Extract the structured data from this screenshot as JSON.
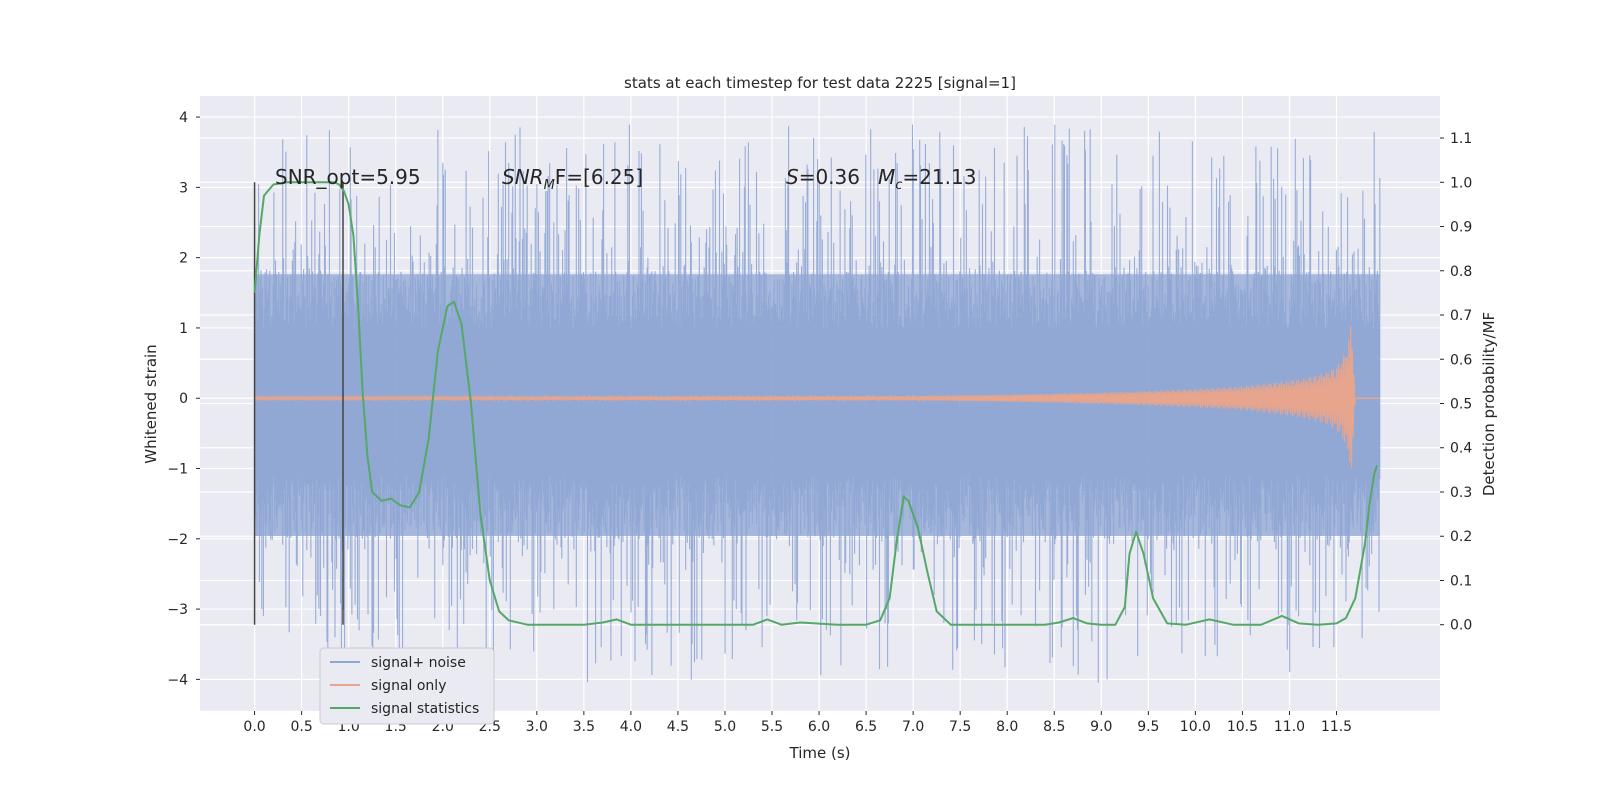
{
  "chart_data": {
    "type": "line",
    "title": "stats at each timestep for test data 2225 [signal=1]",
    "xlabel": "Time (s)",
    "ylabel": "Whitened strain",
    "y2label": "Detection probability/MF",
    "xlim": [
      -0.58,
      12.6
    ],
    "ylim": [
      -4.45,
      4.3
    ],
    "y2lim": [
      -0.195,
      1.195
    ],
    "x_ticks": [
      "0.0",
      "0.5",
      "1.0",
      "1.5",
      "2.0",
      "2.5",
      "3.0",
      "3.5",
      "4.0",
      "4.5",
      "5.0",
      "5.5",
      "6.0",
      "6.5",
      "7.0",
      "7.5",
      "8.0",
      "8.5",
      "9.0",
      "9.5",
      "10.0",
      "10.5",
      "11.0",
      "11.5"
    ],
    "y_ticks": [
      "4",
      "3",
      "2",
      "1",
      "0",
      "−1",
      "−2",
      "−3",
      "−4"
    ],
    "y2_ticks": [
      "1.1",
      "1.0",
      "0.9",
      "0.8",
      "0.7",
      "0.6",
      "0.5",
      "0.4",
      "0.3",
      "0.2",
      "0.1",
      "0.0"
    ],
    "grid": true,
    "legend_position": "lower-left",
    "annotations": {
      "snr_opt": "SNR_opt=5.95",
      "snr_mf_prefix": "SNR",
      "snr_mf_sub": "M",
      "snr_mf_suffix": "F=[6.25]",
      "s_prefix": "S",
      "s_value": "=0.36",
      "mc_prefix": "M",
      "mc_sub": "c",
      "mc_value": "=21.13"
    },
    "vlines": [
      0.0,
      0.94
    ],
    "series": [
      {
        "name": "signal+ noise",
        "color": "#8fa6d4",
        "x_range": [
          0.0,
          11.96
        ],
        "envelope_typical": [
          -2.0,
          1.8
        ],
        "envelope_peaks": [
          -4.1,
          3.9
        ]
      },
      {
        "name": "signal only",
        "color": "#e6a58c",
        "x": [
          0.0,
          7.0,
          8.0,
          9.0,
          10.0,
          10.5,
          11.0,
          11.2,
          11.4,
          11.5,
          11.55,
          11.6,
          11.64,
          11.66,
          11.68,
          11.7
        ],
        "amplitude": [
          0.02,
          0.03,
          0.05,
          0.08,
          0.13,
          0.17,
          0.25,
          0.3,
          0.38,
          0.45,
          0.55,
          0.68,
          0.9,
          1.25,
          0.5,
          0.0
        ]
      },
      {
        "name": "signal statistics",
        "color": "#55a868",
        "x": [
          0.0,
          0.05,
          0.1,
          0.2,
          0.35,
          0.5,
          0.65,
          0.75,
          0.85,
          0.9,
          0.95,
          1.0,
          1.05,
          1.1,
          1.15,
          1.2,
          1.25,
          1.35,
          1.45,
          1.55,
          1.65,
          1.75,
          1.85,
          1.95,
          2.05,
          2.12,
          2.2,
          2.3,
          2.4,
          2.5,
          2.6,
          2.7,
          2.9,
          3.2,
          3.5,
          3.7,
          3.85,
          4.0,
          4.2,
          4.6,
          5.0,
          5.3,
          5.45,
          5.6,
          5.8,
          6.2,
          6.5,
          6.65,
          6.75,
          6.82,
          6.9,
          6.95,
          7.05,
          7.15,
          7.25,
          7.4,
          7.7,
          8.0,
          8.4,
          8.55,
          8.7,
          8.85,
          9.0,
          9.15,
          9.25,
          9.3,
          9.37,
          9.45,
          9.55,
          9.7,
          9.9,
          10.15,
          10.4,
          10.7,
          10.92,
          11.1,
          11.3,
          11.5,
          11.6,
          11.7,
          11.8,
          11.85,
          11.9,
          11.93
        ],
        "y": [
          0.75,
          0.88,
          0.97,
          0.995,
          1.0,
          1.0,
          1.0,
          1.0,
          1.0,
          0.995,
          0.98,
          0.95,
          0.88,
          0.72,
          0.52,
          0.38,
          0.3,
          0.28,
          0.285,
          0.27,
          0.265,
          0.3,
          0.42,
          0.62,
          0.72,
          0.73,
          0.68,
          0.5,
          0.25,
          0.1,
          0.03,
          0.01,
          0.0,
          0.0,
          0.0,
          0.005,
          0.012,
          0.0,
          0.0,
          0.0,
          0.0,
          0.0,
          0.012,
          0.0,
          0.005,
          0.0,
          0.0,
          0.01,
          0.06,
          0.18,
          0.29,
          0.28,
          0.22,
          0.12,
          0.03,
          0.0,
          0.0,
          0.0,
          0.0,
          0.005,
          0.015,
          0.003,
          0.0,
          0.0,
          0.04,
          0.16,
          0.21,
          0.16,
          0.06,
          0.003,
          0.0,
          0.012,
          0.0,
          0.0,
          0.02,
          0.003,
          0.0,
          0.003,
          0.015,
          0.06,
          0.18,
          0.27,
          0.34,
          0.36
        ]
      }
    ]
  }
}
